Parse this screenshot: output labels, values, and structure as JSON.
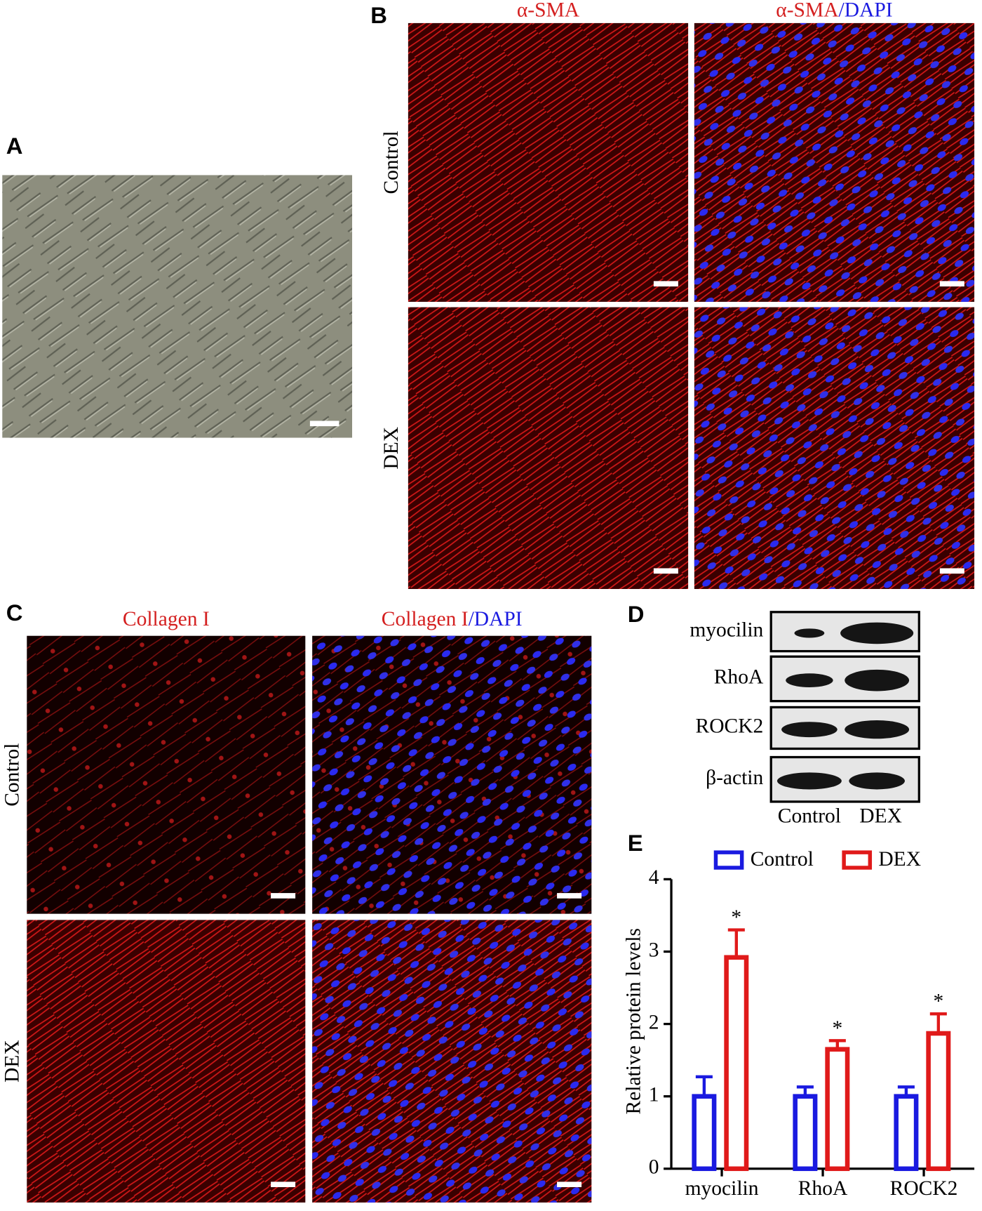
{
  "panel_a": {
    "label": "A"
  },
  "panel_b": {
    "label": "B",
    "columns": [
      [
        "α-SMA"
      ],
      [
        "α-SMA",
        "/DAPI"
      ]
    ],
    "rows": [
      "Control",
      "DEX"
    ]
  },
  "panel_c": {
    "label": "C",
    "columns": [
      [
        "Collagen I"
      ],
      [
        "Collagen I",
        "/DAPI"
      ]
    ],
    "rows": [
      "Control",
      "DEX"
    ]
  },
  "panel_d": {
    "label": "D",
    "proteins": [
      "myocilin",
      "RhoA",
      "ROCK2",
      "β-actin"
    ],
    "lanes": [
      "Control",
      "DEX"
    ]
  },
  "panel_e": {
    "label": "E"
  },
  "chart_data": {
    "type": "bar",
    "ylabel": "Relative protein levels",
    "categories": [
      "myocilin",
      "RhoA",
      "ROCK2"
    ],
    "series": [
      {
        "name": "Control",
        "color": "#1a1ae0",
        "values": [
          1,
          1,
          1
        ],
        "errors": [
          0.27,
          0.13,
          0.13
        ]
      },
      {
        "name": "DEX",
        "color": "#e01a1a",
        "values": [
          2.92,
          1.65,
          1.87
        ],
        "errors": [
          0.38,
          0.12,
          0.27
        ],
        "annotations": [
          "*",
          "*",
          "*"
        ]
      }
    ],
    "ylim": [
      0,
      4
    ],
    "yticks": [
      0,
      1,
      2,
      3,
      4
    ]
  }
}
